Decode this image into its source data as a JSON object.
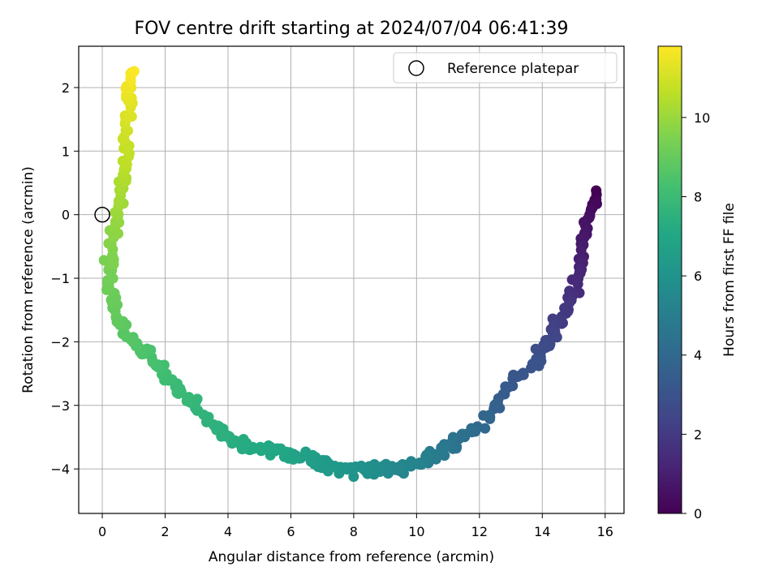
{
  "chart_data": {
    "type": "scatter",
    "title": "FOV centre drift starting at 2024/07/04 06:41:39",
    "xlabel": "Angular distance from reference (arcmin)",
    "ylabel": "Rotation from reference (arcmin)",
    "colorbar_label": "Hours from first FF file",
    "xlim": [
      -0.75,
      16.6
    ],
    "ylim": [
      -4.7,
      2.65
    ],
    "clim": [
      0,
      11.8
    ],
    "x_ticks": [
      0,
      2,
      4,
      6,
      8,
      10,
      12,
      14,
      16
    ],
    "y_ticks": [
      -4,
      -3,
      -2,
      -1,
      0,
      1,
      2
    ],
    "colorbar_ticks": [
      0,
      2,
      4,
      6,
      8,
      10
    ],
    "grid": true,
    "colormap": "viridis",
    "legend": {
      "placement": "top-right",
      "entries": [
        "Reference platepar"
      ]
    },
    "reference_point": {
      "x": 0,
      "y": 0
    },
    "anchors": [
      [
        15.7,
        0.3,
        0.0
      ],
      [
        15.6,
        0.1,
        0.3
      ],
      [
        15.4,
        -0.2,
        0.6
      ],
      [
        15.3,
        -0.4,
        0.8
      ],
      [
        15.2,
        -0.9,
        1.2
      ],
      [
        15.0,
        -1.2,
        1.5
      ],
      [
        14.7,
        -1.5,
        1.9
      ],
      [
        14.5,
        -1.7,
        2.1
      ],
      [
        14.3,
        -1.9,
        2.4
      ],
      [
        14.0,
        -2.1,
        2.7
      ],
      [
        13.8,
        -2.4,
        3.0
      ],
      [
        13.0,
        -2.7,
        3.2
      ],
      [
        12.5,
        -3.0,
        3.6
      ],
      [
        12.0,
        -3.3,
        4.0
      ],
      [
        11.5,
        -3.5,
        4.3
      ],
      [
        11.0,
        -3.6,
        4.6
      ],
      [
        10.5,
        -3.8,
        4.9
      ],
      [
        10.0,
        -3.9,
        5.2
      ],
      [
        9.5,
        -4.0,
        5.4
      ],
      [
        9.0,
        -4.0,
        5.6
      ],
      [
        8.5,
        -4.0,
        5.8
      ],
      [
        8.0,
        -4.0,
        6.0
      ],
      [
        7.5,
        -4.0,
        6.2
      ],
      [
        7.0,
        -3.9,
        6.4
      ],
      [
        6.5,
        -3.8,
        6.6
      ],
      [
        6.0,
        -3.8,
        6.8
      ],
      [
        5.5,
        -3.7,
        7.0
      ],
      [
        5.0,
        -3.7,
        7.1
      ],
      [
        4.5,
        -3.6,
        7.2
      ],
      [
        4.0,
        -3.5,
        7.4
      ],
      [
        3.5,
        -3.3,
        7.5
      ],
      [
        3.0,
        -3.0,
        7.7
      ],
      [
        2.5,
        -2.8,
        7.9
      ],
      [
        2.0,
        -2.5,
        8.1
      ],
      [
        1.6,
        -2.3,
        8.3
      ],
      [
        1.2,
        -2.1,
        8.5
      ],
      [
        0.8,
        -1.9,
        8.7
      ],
      [
        0.5,
        -1.6,
        8.9
      ],
      [
        0.3,
        -1.3,
        9.1
      ],
      [
        0.2,
        -0.9,
        9.3
      ],
      [
        0.3,
        -0.5,
        9.6
      ],
      [
        0.45,
        -0.1,
        9.9
      ],
      [
        0.6,
        0.3,
        10.2
      ],
      [
        0.7,
        0.7,
        10.5
      ],
      [
        0.75,
        1.1,
        10.8
      ],
      [
        0.8,
        1.6,
        11.2
      ],
      [
        0.85,
        2.0,
        11.5
      ],
      [
        0.9,
        2.3,
        11.8
      ]
    ]
  }
}
